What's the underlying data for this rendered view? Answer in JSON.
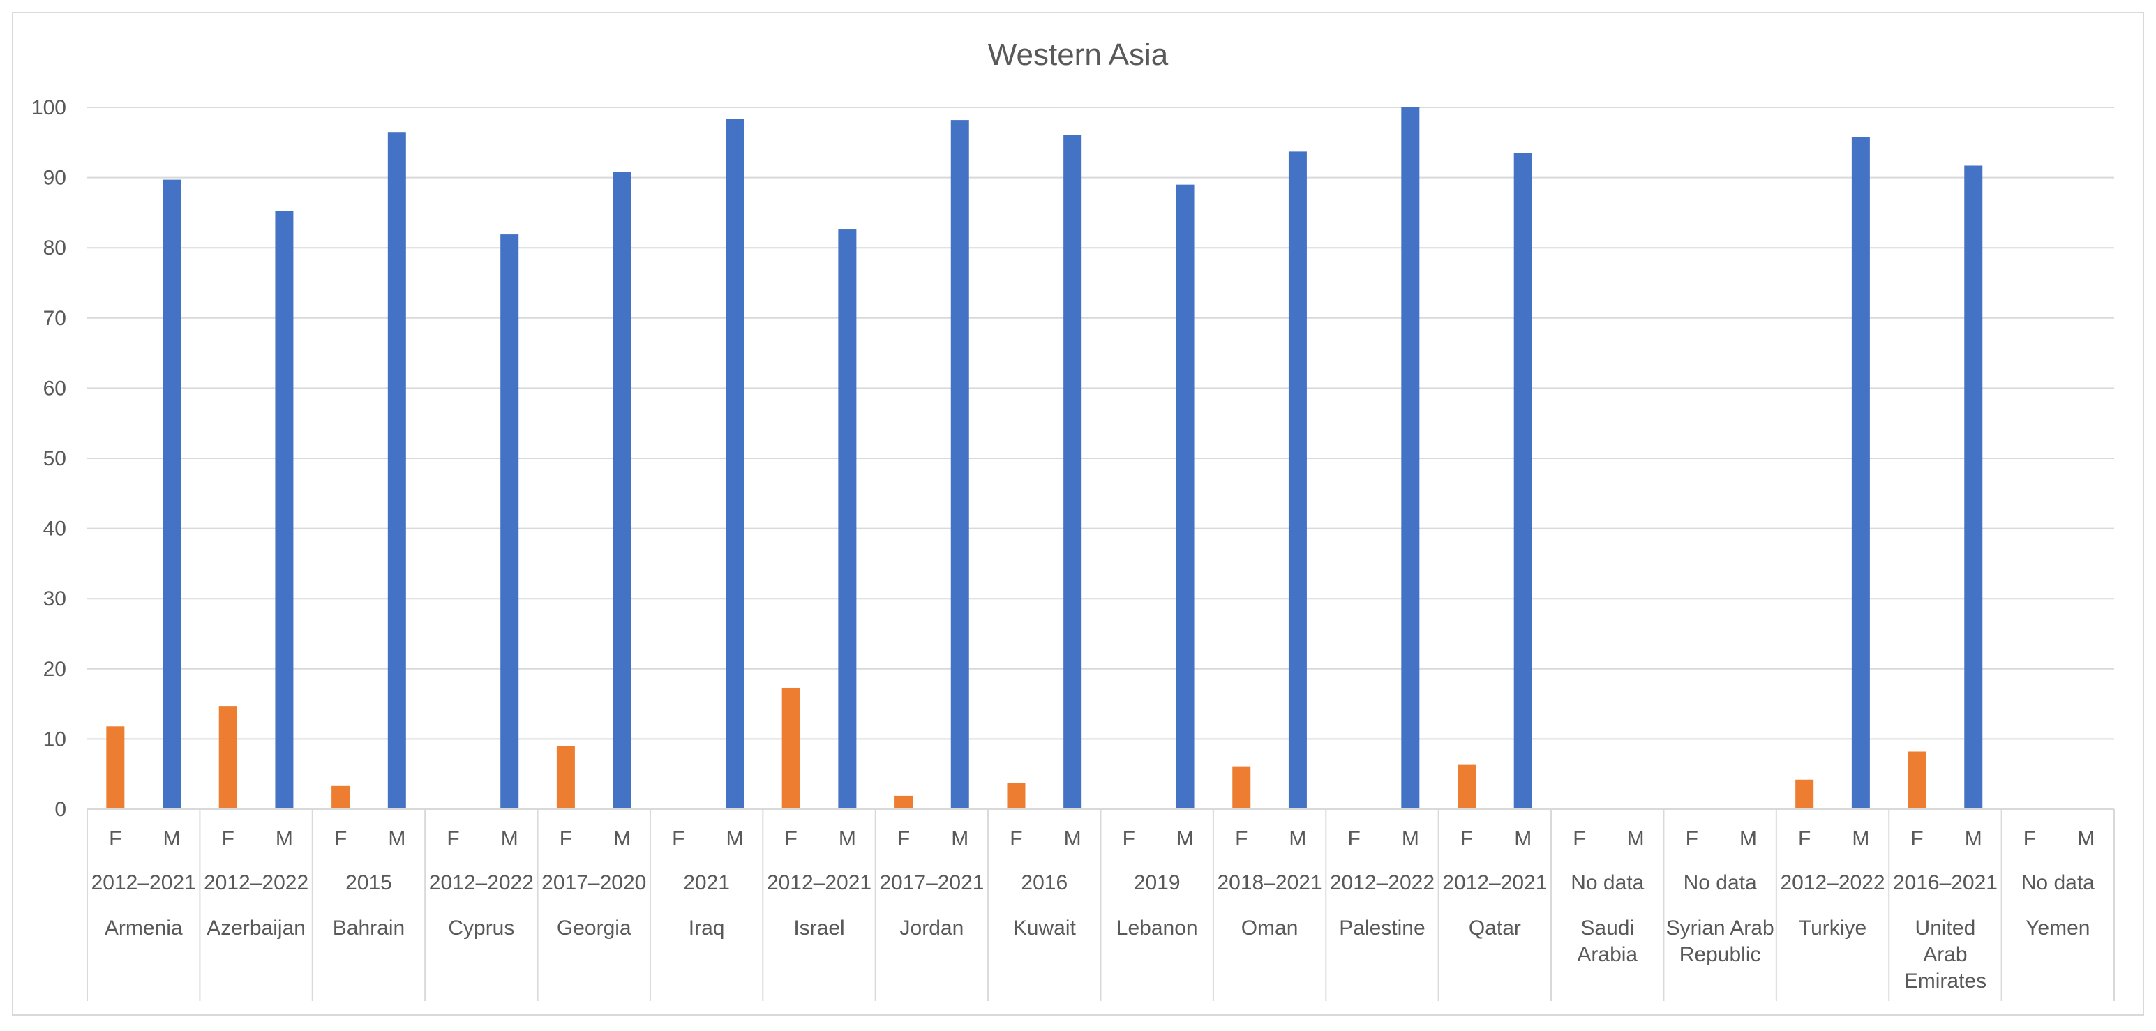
{
  "chart_data": {
    "type": "bar",
    "title": "Western Asia",
    "xlabel": "",
    "ylabel": "",
    "ylim": [
      0,
      100
    ],
    "yticks": [
      "0",
      "10",
      "20",
      "30",
      "40",
      "50",
      "60",
      "70",
      "80",
      "90",
      "100"
    ],
    "grid": true,
    "legend": "none",
    "colors": {
      "F": "#ED7D31",
      "M": "#4472C4",
      "grid": "#D9D9D9",
      "text": "#595959"
    },
    "series_labels": [
      "F",
      "M"
    ],
    "groups": [
      {
        "country": [
          "Armenia"
        ],
        "period": "2012–2021",
        "F": 11.8,
        "M": 89.7
      },
      {
        "country": [
          "Azerbaijan"
        ],
        "period": "2012–2022",
        "F": 14.7,
        "M": 85.2
      },
      {
        "country": [
          "Bahrain"
        ],
        "period": "2015",
        "F": 3.3,
        "M": 96.5
      },
      {
        "country": [
          "Cyprus"
        ],
        "period": "2012–2022",
        "F": null,
        "M": 81.9
      },
      {
        "country": [
          "Georgia"
        ],
        "period": "2017–2020",
        "F": 9.0,
        "M": 90.8
      },
      {
        "country": [
          "Iraq"
        ],
        "period": "2021",
        "F": null,
        "M": 98.4
      },
      {
        "country": [
          "Israel"
        ],
        "period": "2012–2021",
        "F": 17.3,
        "M": 82.6
      },
      {
        "country": [
          "Jordan"
        ],
        "period": "2017–2021",
        "F": 1.9,
        "M": 98.2
      },
      {
        "country": [
          "Kuwait"
        ],
        "period": "2016",
        "F": 3.7,
        "M": 96.1
      },
      {
        "country": [
          "Lebanon"
        ],
        "period": "2019",
        "F": null,
        "M": 89.0
      },
      {
        "country": [
          "Oman"
        ],
        "period": "2018–2021",
        "F": 6.1,
        "M": 93.7
      },
      {
        "country": [
          "Palestine"
        ],
        "period": "2012–2022",
        "F": null,
        "M": 100.0
      },
      {
        "country": [
          "Qatar"
        ],
        "period": "2012–2021",
        "F": 6.4,
        "M": 93.5
      },
      {
        "country": [
          "Saudi",
          "Arabia"
        ],
        "period": "No data",
        "F": null,
        "M": null
      },
      {
        "country": [
          "Syrian Arab",
          "Republic"
        ],
        "period": "No data",
        "F": null,
        "M": null
      },
      {
        "country": [
          "Turkiye"
        ],
        "period": "2012–2022",
        "F": 4.2,
        "M": 95.8
      },
      {
        "country": [
          "United",
          "Arab",
          "Emirates"
        ],
        "period": "2016–2021",
        "F": 8.2,
        "M": 91.7
      },
      {
        "country": [
          "Yemen"
        ],
        "period": "No data",
        "F": null,
        "M": null
      }
    ]
  }
}
